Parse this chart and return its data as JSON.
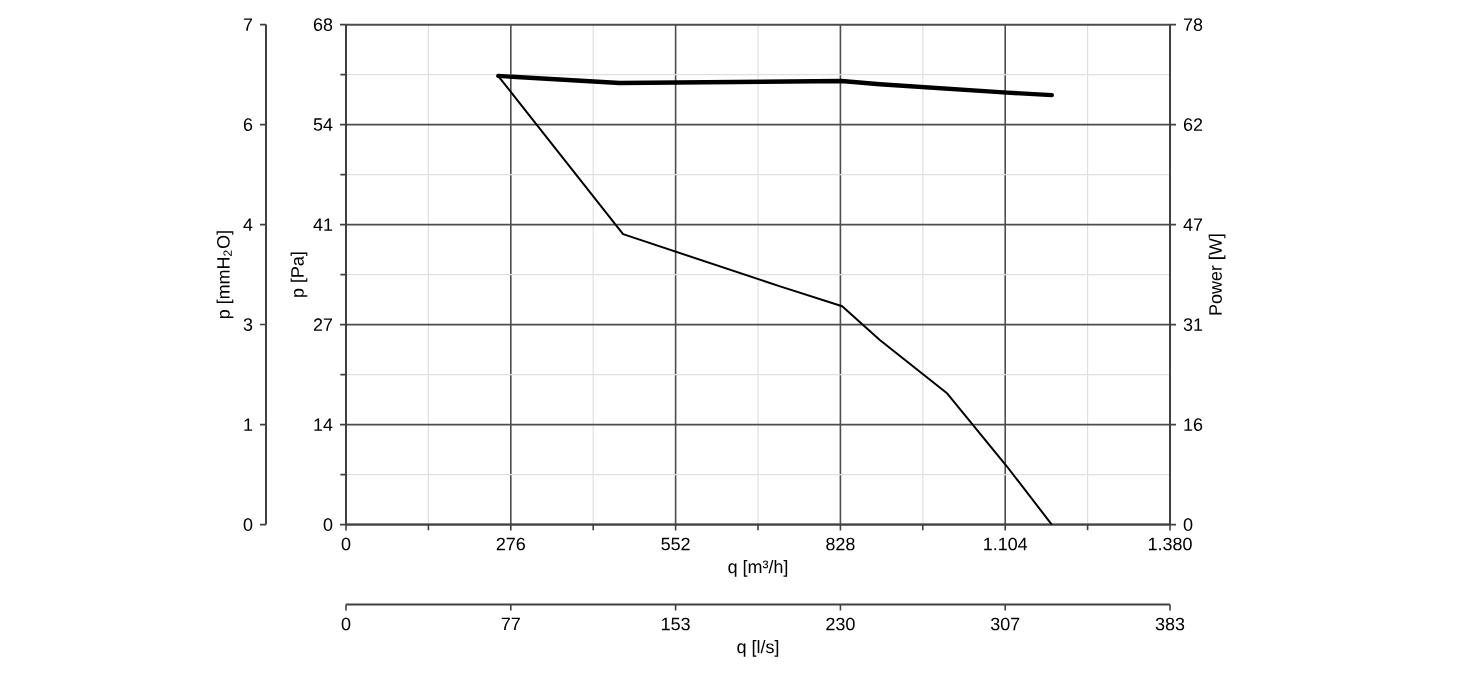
{
  "chart_data": {
    "type": "line",
    "xlabel": "q [m³/h]",
    "ylabel": "p [Pa]",
    "y2label": "Power [W]",
    "y3label": "p [mmH$_{2}$O]",
    "x2label": "q [l/s]",
    "xlim": [
      0,
      1380
    ],
    "xticks": [
      0,
      276,
      552,
      828,
      {
        "value": 1104,
        "label": "1.104"
      },
      {
        "value": 1380,
        "label": "1.380"
      }
    ],
    "x2lim": [
      0,
      383.33
    ],
    "x2ticks": [
      0,
      {
        "value": 76.67,
        "label": "77"
      },
      {
        "value": 153.33,
        "label": "153"
      },
      {
        "value": 230,
        "label": "230"
      },
      {
        "value": 306.67,
        "label": "307"
      },
      {
        "value": 383.33,
        "label": "383"
      }
    ],
    "ylim": [
      0,
      68
    ],
    "yticks": [
      0,
      {
        "value": 13.6,
        "label": "14"
      },
      {
        "value": 27.2,
        "label": "27"
      },
      {
        "value": 40.8,
        "label": "41"
      },
      {
        "value": 54.4,
        "label": "54"
      },
      68
    ],
    "y2lim": [
      0,
      78
    ],
    "y2ticks": [
      0,
      {
        "value": 15.6,
        "label": "16"
      },
      {
        "value": 31.2,
        "label": "31"
      },
      {
        "value": 46.8,
        "label": "47"
      },
      {
        "value": 62.4,
        "label": "62"
      },
      78
    ],
    "y3lim": [
      0,
      6.934
    ],
    "y3ticks": [
      0,
      {
        "value": 1.387,
        "label": "1"
      },
      {
        "value": 2.774,
        "label": "3"
      },
      {
        "value": 4.16,
        "label": "4"
      },
      {
        "value": 5.547,
        "label": "6"
      },
      {
        "value": 6.934,
        "label": "7"
      }
    ],
    "grid": true,
    "line_style": "solid",
    "series": [
      {
        "color": "#000000",
        "x": [
          255,
          464,
          727,
          831,
          894,
          1006,
          1107,
          1182
        ],
        "values": [
          61.0,
          39.5,
          32.4,
          29.7,
          25.1,
          17.9,
          7.9,
          0
        ]
      },
      {
        "color": "#000000",
        "axis": "y2",
        "x": [
          255,
          458,
          830,
          894,
          1107,
          1182
        ],
        "values": [
          70.0,
          68.9,
          69.2,
          68.7,
          67.4,
          67.0
        ]
      }
    ]
  }
}
